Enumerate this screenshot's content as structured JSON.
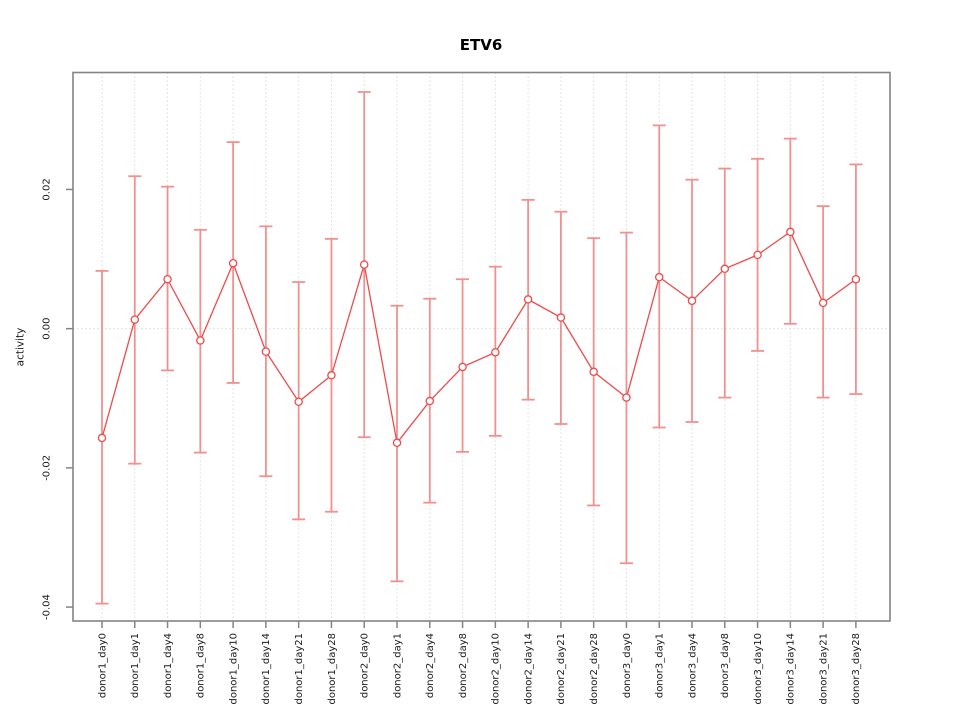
{
  "window": {
    "background": "#ffffff"
  },
  "chart_data": {
    "type": "line",
    "subtype": "points-with-error-bars",
    "title": "ETV6",
    "xlabel": "",
    "ylabel": "activity",
    "legend": "none",
    "grid": {
      "vertical_dotted_per_category": true,
      "horizontal_dotted_at_zero": true
    },
    "categories": [
      "donor1_day0",
      "donor1_day1",
      "donor1_day4",
      "donor1_day8",
      "donor1_day10",
      "donor1_day14",
      "donor1_day21",
      "donor1_day28",
      "donor2_day0",
      "donor2_day1",
      "donor2_day4",
      "donor2_day8",
      "donor2_day10",
      "donor2_day14",
      "donor2_day21",
      "donor2_day28",
      "donor3_day0",
      "donor3_day1",
      "donor3_day4",
      "donor3_day8",
      "donor3_day10",
      "donor3_day14",
      "donor3_day21",
      "donor3_day28"
    ],
    "values": [
      -0.0157,
      0.0013,
      0.0071,
      -0.0017,
      0.0094,
      -0.0033,
      -0.0105,
      -0.0067,
      0.0092,
      -0.0164,
      -0.0104,
      -0.0055,
      -0.0034,
      0.0042,
      0.0016,
      -0.0062,
      -0.0099,
      0.0074,
      0.004,
      0.0086,
      0.0106,
      0.0139,
      0.0037,
      0.0071
    ],
    "error_high": [
      0.0083,
      0.0219,
      0.0204,
      0.0142,
      0.0268,
      0.0147,
      0.0067,
      0.0129,
      0.034,
      0.0033,
      0.0043,
      0.0071,
      0.0089,
      0.0185,
      0.0168,
      0.013,
      0.0138,
      0.0292,
      0.0214,
      0.023,
      0.0244,
      0.0273,
      0.0176,
      0.0236
    ],
    "error_low": [
      -0.0395,
      -0.0194,
      -0.006,
      -0.0178,
      -0.0078,
      -0.0212,
      -0.0274,
      -0.0263,
      -0.0156,
      -0.0363,
      -0.025,
      -0.0177,
      -0.0154,
      -0.0102,
      -0.0137,
      -0.0254,
      -0.0337,
      -0.0142,
      -0.0134,
      -0.0099,
      -0.0032,
      0.0007,
      -0.0099,
      -0.0094
    ],
    "yticks": [
      {
        "value": 0.02,
        "label": "0.02"
      },
      {
        "value": 0.0,
        "label": "0.00"
      },
      {
        "value": -0.02,
        "label": "-0.02"
      },
      {
        "value": -0.04,
        "label": "-0.04"
      }
    ],
    "ylim": [
      -0.042,
      0.0368
    ],
    "colors": {
      "series": "#EF4A4A",
      "error_bar": "#F29090",
      "grid": "#DBDBDB",
      "axis": "#848484",
      "text": "#1A1A1A",
      "title": "#000000"
    }
  }
}
